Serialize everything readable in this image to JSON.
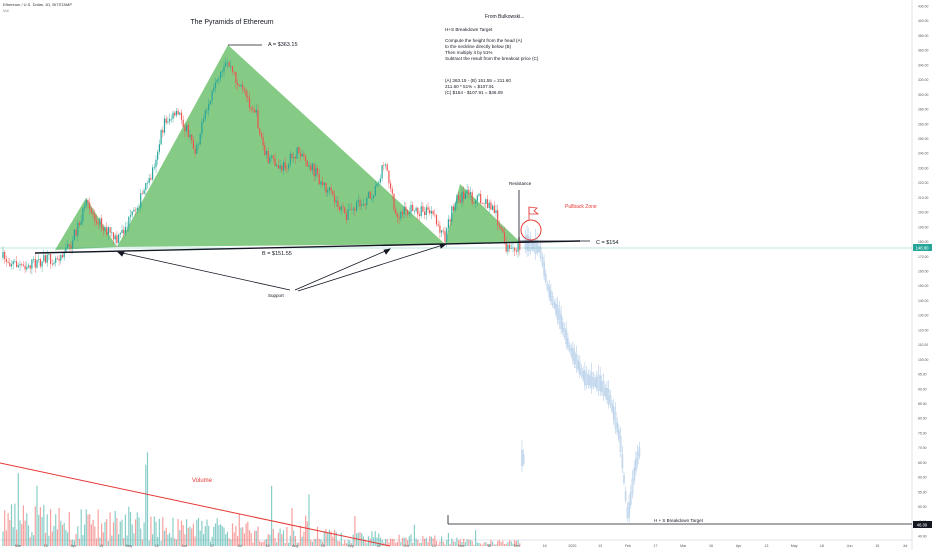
{
  "header": {
    "symbol": "Ethereum / U.S. Dollar, 1D, BITSTAMP",
    "sub": "Vol"
  },
  "annotations": {
    "title": "The Pyramids of Ethereum",
    "head_label": "A = $363.15",
    "neck_label": "B = $151.55",
    "breakout_label": "C = $154",
    "support_label": "Support",
    "resistance_label": "Resistance",
    "pullback_label": "Pullback Zone",
    "volume_label": "Volume",
    "target_label": "H + S Breakdown Target",
    "bulk_title": "From Bulkowski...",
    "bulk_heading": "H+S Breakdown Target",
    "bulk_line1": "Compute the height from the head (A)",
    "bulk_line2": "to the neckline directly below (B)",
    "bulk_line3": "Then multiply it by 51%",
    "bulk_line4": "Subtract the result from the breakout price (C)",
    "calc_line1": "(A) 363.15 - (B) 151.55 = 211.60",
    "calc_line2": "211.60 * 51% = $107.91",
    "calc_line3": "(C) $154 - $107.91 = $46.09"
  },
  "price_axis": {
    "ticks": [
      "430.00",
      "400.00",
      "380.00",
      "360.00",
      "340.00",
      "320.00",
      "300.00",
      "280.00",
      "260.00",
      "250.00",
      "240.00",
      "230.00",
      "220.00",
      "210.00",
      "200.00",
      "190.00",
      "180.00",
      "170.00",
      "160.00",
      "150.00",
      "140.00",
      "130.00",
      "120.00",
      "110.00",
      "100.00",
      "95.00",
      "90.00",
      "85.00",
      "80.00",
      "75.00",
      "70.00",
      "65.00",
      "60.00",
      "55.00",
      "50.00",
      "45.00",
      "40.00"
    ],
    "current_price": "148.80",
    "target_price": "46.09"
  },
  "time_axis": {
    "ticks": [
      "Mar",
      "15",
      "Apr",
      "15",
      "May",
      "15",
      "Jun",
      "17",
      "Jul",
      "15",
      "Aug",
      "15",
      "Sep",
      "16",
      "Oct",
      "14",
      "Nov",
      "18",
      "Dec",
      "16",
      "2020",
      "13",
      "Feb",
      "17",
      "Mar",
      "16",
      "Apr",
      "13",
      "May",
      "18",
      "Jun",
      "15",
      "Jul"
    ]
  },
  "colors": {
    "pyramid_fill": "#5cb85c",
    "up_candle": "#26a69a",
    "down_candle": "#ef5350",
    "projection": "#b3cde8",
    "trend_line": "#e53935",
    "pullback": "#e53935"
  }
}
